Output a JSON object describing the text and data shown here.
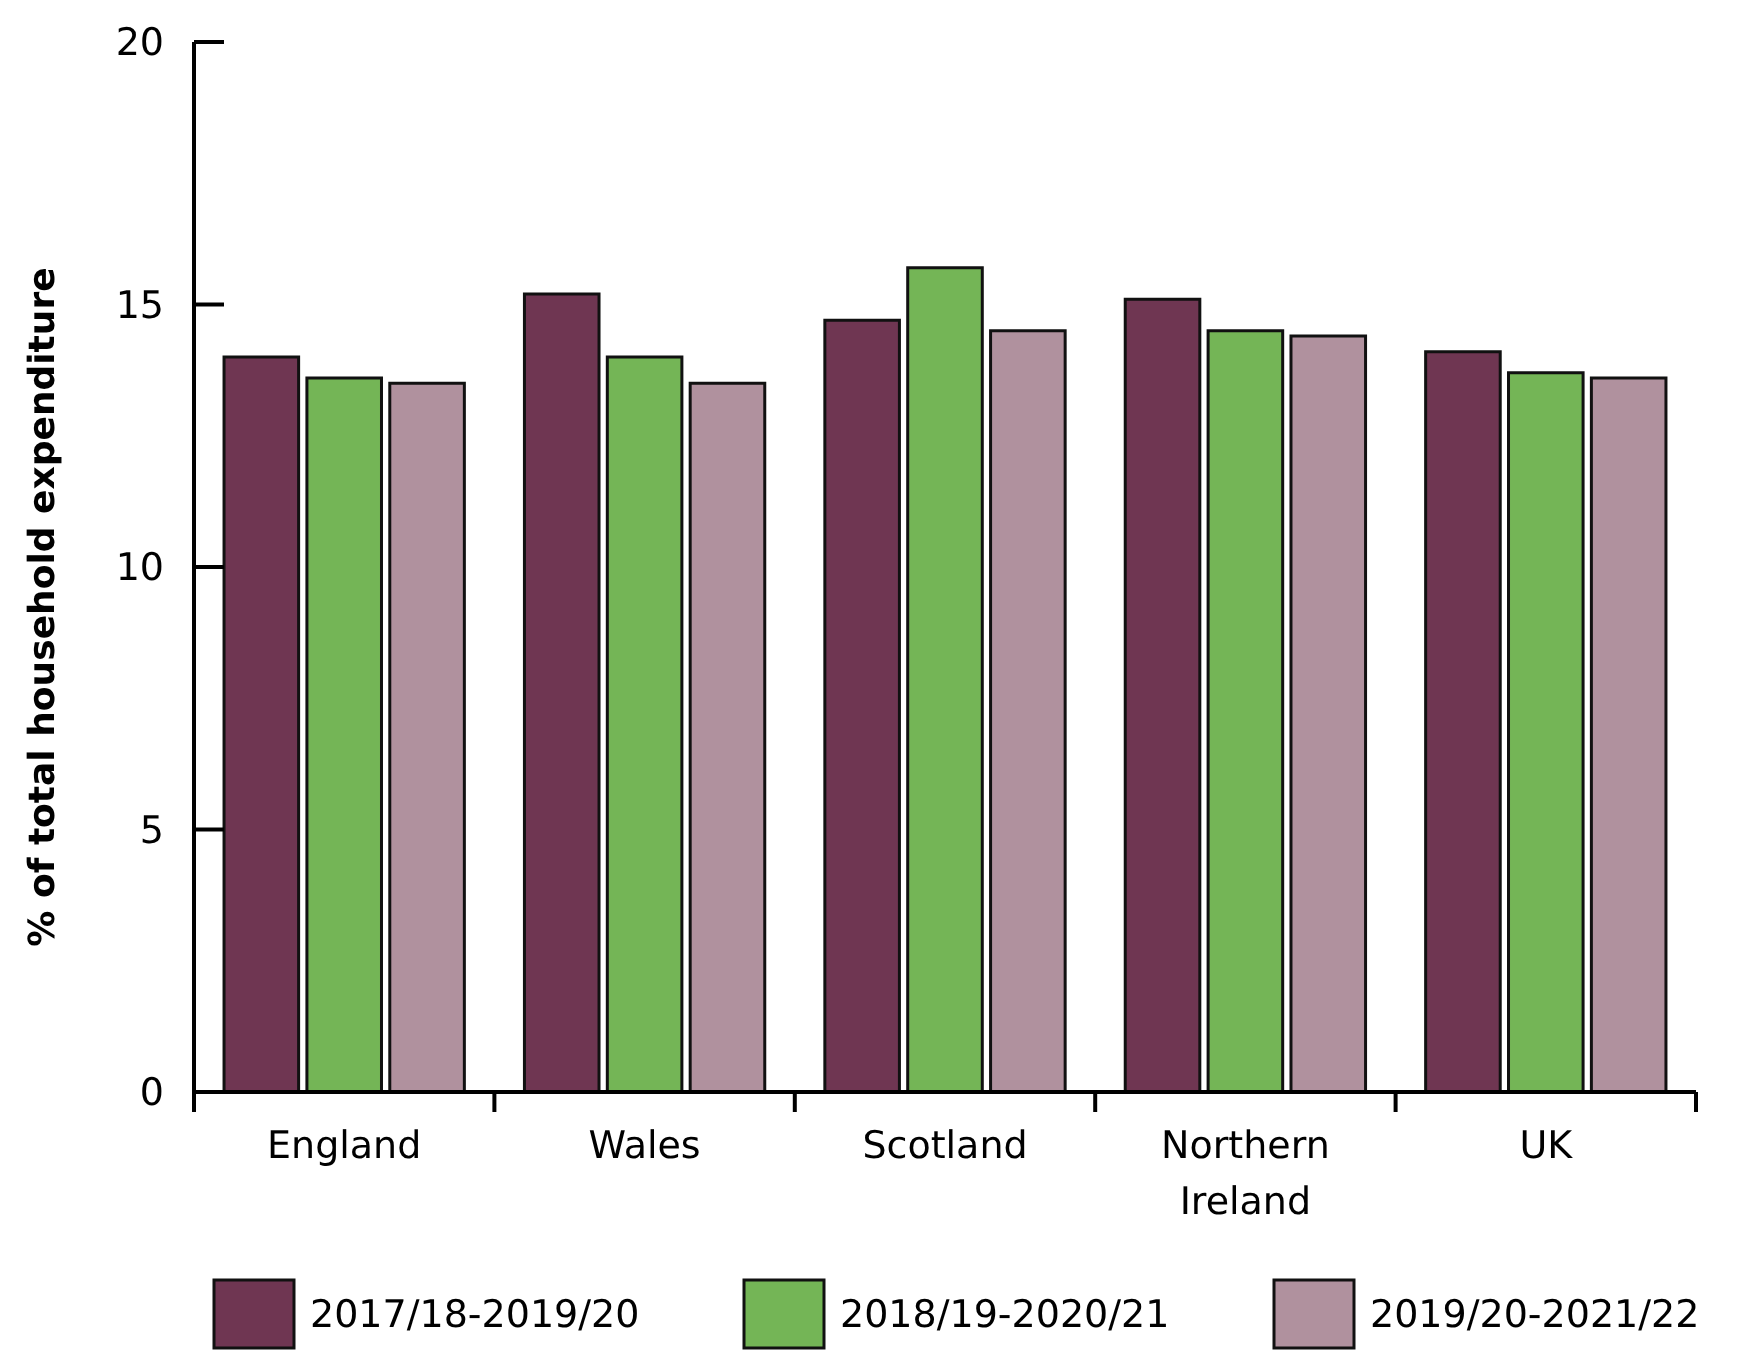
{
  "chart_data": {
    "type": "bar",
    "ylabel": "% of total household expenditure",
    "categories": [
      "England",
      "Wales",
      "Scotland",
      "Northern Ireland",
      "UK"
    ],
    "series": [
      {
        "name": "2017/18-2019/20",
        "color": "#6f3652",
        "values": [
          14.0,
          15.2,
          14.7,
          15.1,
          14.1
        ]
      },
      {
        "name": "2018/19-2020/21",
        "color": "#74b556",
        "values": [
          13.6,
          14.0,
          15.7,
          14.5,
          13.7
        ]
      },
      {
        "name": "2019/20-2021/22",
        "color": "#b0919e",
        "values": [
          13.5,
          13.5,
          14.5,
          14.4,
          13.6
        ]
      }
    ],
    "ylim": [
      0,
      20
    ],
    "yticks": [
      0,
      5,
      10,
      15,
      20
    ],
    "grid": false,
    "legend": "bottom"
  }
}
